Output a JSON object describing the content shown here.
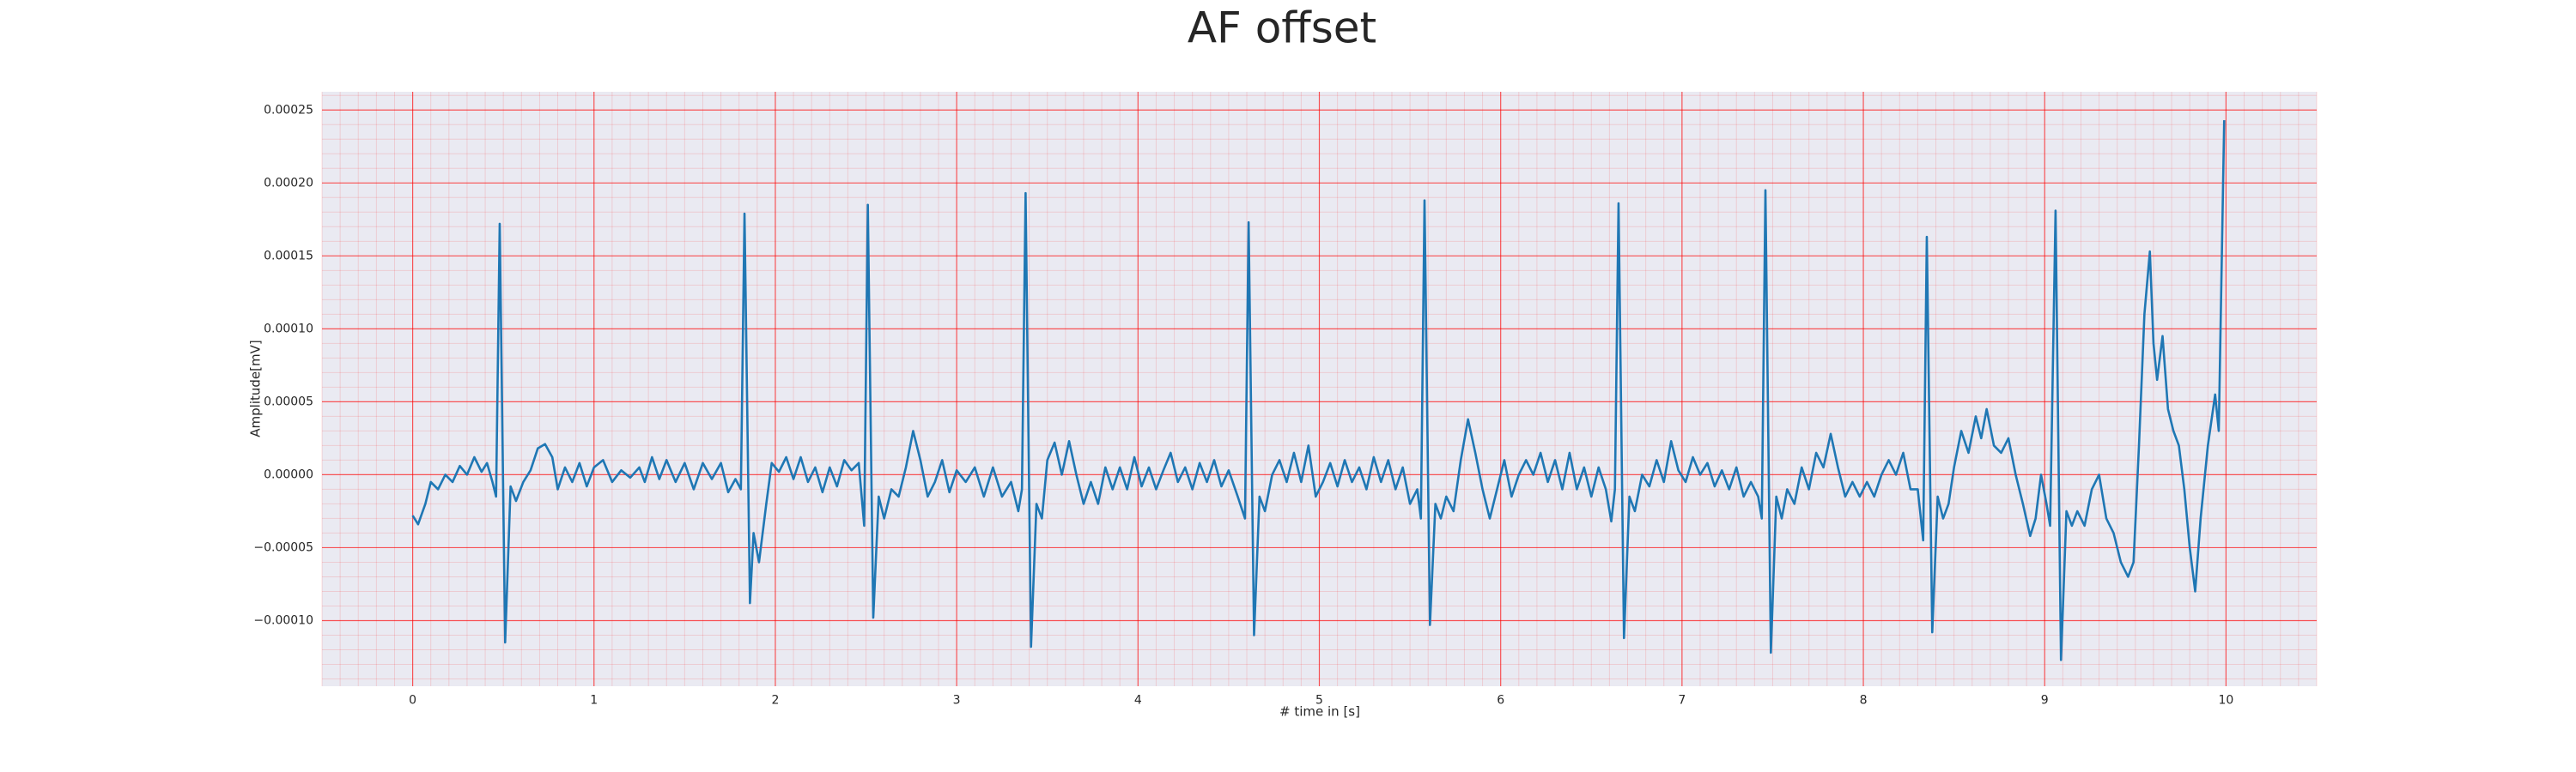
{
  "chart_data": {
    "type": "line",
    "title": "AF offset",
    "xlabel": "# time in [s]",
    "ylabel": "Amplitude[mV]",
    "xlim": [
      -0.5,
      10.5
    ],
    "xticks": [
      0,
      1,
      2,
      3,
      4,
      5,
      6,
      7,
      8,
      9,
      10
    ],
    "ylim": [
      -0.000145,
      0.0002625
    ],
    "yticks": [
      {
        "value": -0.0001,
        "label": "−0.00010"
      },
      {
        "value": -5e-05,
        "label": "−0.00005"
      },
      {
        "value": 0,
        "label": "0.00000"
      },
      {
        "value": 5e-05,
        "label": "0.00005"
      },
      {
        "value": 0.0001,
        "label": "0.00010"
      },
      {
        "value": 0.00015,
        "label": "0.00015"
      },
      {
        "value": 0.0002,
        "label": "0.00020"
      },
      {
        "value": 0.00025,
        "label": "0.00025"
      }
    ],
    "grid": true,
    "minor_grid": true,
    "grid_color": "#ff0000",
    "background": "#eaeaf2",
    "x": [
      0,
      0.03,
      0.07,
      0.1,
      0.14,
      0.18,
      0.22,
      0.26,
      0.3,
      0.34,
      0.38,
      0.41,
      0.44,
      0.46,
      0.48,
      0.51,
      0.54,
      0.57,
      0.61,
      0.65,
      0.69,
      0.73,
      0.77,
      0.8,
      0.84,
      0.88,
      0.92,
      0.96,
      1.0,
      1.05,
      1.1,
      1.15,
      1.2,
      1.25,
      1.28,
      1.32,
      1.36,
      1.4,
      1.45,
      1.5,
      1.55,
      1.6,
      1.65,
      1.7,
      1.74,
      1.78,
      1.81,
      1.83,
      1.86,
      1.88,
      1.91,
      1.95,
      1.98,
      2.02,
      2.06,
      2.1,
      2.14,
      2.18,
      2.22,
      2.26,
      2.3,
      2.34,
      2.38,
      2.42,
      2.46,
      2.49,
      2.51,
      2.54,
      2.57,
      2.6,
      2.64,
      2.68,
      2.72,
      2.76,
      2.8,
      2.84,
      2.88,
      2.92,
      2.96,
      3.0,
      3.05,
      3.1,
      3.15,
      3.2,
      3.25,
      3.3,
      3.34,
      3.36,
      3.38,
      3.41,
      3.44,
      3.47,
      3.5,
      3.54,
      3.58,
      3.62,
      3.66,
      3.7,
      3.74,
      3.78,
      3.82,
      3.86,
      3.9,
      3.94,
      3.98,
      4.02,
      4.06,
      4.1,
      4.14,
      4.18,
      4.22,
      4.26,
      4.3,
      4.34,
      4.38,
      4.42,
      4.46,
      4.5,
      4.55,
      4.59,
      4.61,
      4.64,
      4.67,
      4.7,
      4.74,
      4.78,
      4.82,
      4.86,
      4.9,
      4.94,
      4.98,
      5.02,
      5.06,
      5.1,
      5.14,
      5.18,
      5.22,
      5.26,
      5.3,
      5.34,
      5.38,
      5.42,
      5.46,
      5.5,
      5.54,
      5.56,
      5.58,
      5.61,
      5.64,
      5.67,
      5.7,
      5.74,
      5.78,
      5.82,
      5.86,
      5.9,
      5.94,
      5.98,
      6.02,
      6.06,
      6.1,
      6.14,
      6.18,
      6.22,
      6.26,
      6.3,
      6.34,
      6.38,
      6.42,
      6.46,
      6.5,
      6.54,
      6.58,
      6.61,
      6.63,
      6.65,
      6.68,
      6.71,
      6.74,
      6.78,
      6.82,
      6.86,
      6.9,
      6.94,
      6.98,
      7.02,
      7.06,
      7.1,
      7.14,
      7.18,
      7.22,
      7.26,
      7.3,
      7.34,
      7.38,
      7.42,
      7.44,
      7.46,
      7.49,
      7.52,
      7.55,
      7.58,
      7.62,
      7.66,
      7.7,
      7.74,
      7.78,
      7.82,
      7.86,
      7.9,
      7.94,
      7.98,
      8.02,
      8.06,
      8.1,
      8.14,
      8.18,
      8.22,
      8.26,
      8.3,
      8.33,
      8.35,
      8.38,
      8.41,
      8.44,
      8.47,
      8.5,
      8.54,
      8.58,
      8.62,
      8.65,
      8.68,
      8.72,
      8.76,
      8.8,
      8.84,
      8.88,
      8.92,
      8.95,
      8.98,
      9.01,
      9.03,
      9.06,
      9.09,
      9.12,
      9.15,
      9.18,
      9.22,
      9.26,
      9.3,
      9.34,
      9.38,
      9.42,
      9.46,
      9.49,
      9.52,
      9.55,
      9.58,
      9.6,
      9.62,
      9.65,
      9.68,
      9.71,
      9.74,
      9.77,
      9.8,
      9.83,
      9.86,
      9.9,
      9.94,
      9.96,
      9.99
    ],
    "series": [
      {
        "color": "#1f77b4",
        "values": [
          -2.8e-05,
          -3.4e-05,
          -2e-05,
          -5e-06,
          -1e-05,
          0,
          -5e-06,
          6e-06,
          0,
          1.2e-05,
          2e-06,
          8e-06,
          -5e-06,
          -1.5e-05,
          0.000172,
          -0.000115,
          -8e-06,
          -1.8e-05,
          -5e-06,
          3e-06,
          1.8e-05,
          2.1e-05,
          1.2e-05,
          -1e-05,
          5e-06,
          -5e-06,
          8e-06,
          -8e-06,
          5e-06,
          1e-05,
          -5e-06,
          3e-06,
          -2e-06,
          5e-06,
          -5e-06,
          1.2e-05,
          -3e-06,
          1e-05,
          -5e-06,
          8e-06,
          -1e-05,
          8e-06,
          -3e-06,
          8e-06,
          -1.2e-05,
          -3e-06,
          -1e-05,
          0.000179,
          -8.8e-05,
          -4e-05,
          -6e-05,
          -2e-05,
          8e-06,
          2e-06,
          1.2e-05,
          -3e-06,
          1.2e-05,
          -5e-06,
          5e-06,
          -1.2e-05,
          5e-06,
          -8e-06,
          1e-05,
          3e-06,
          8e-06,
          -3.5e-05,
          0.000185,
          -9.8e-05,
          -1.5e-05,
          -3e-05,
          -1e-05,
          -1.5e-05,
          5e-06,
          3e-05,
          1e-05,
          -1.5e-05,
          -5e-06,
          1e-05,
          -1.2e-05,
          3e-06,
          -5e-06,
          5e-06,
          -1.5e-05,
          5e-06,
          -1.5e-05,
          -5e-06,
          -2.5e-05,
          -1e-05,
          0.000193,
          -0.000118,
          -2e-05,
          -3e-05,
          1e-05,
          2.2e-05,
          0,
          2.3e-05,
          0,
          -2e-05,
          -5e-06,
          -2e-05,
          5e-06,
          -1e-05,
          5e-06,
          -1e-05,
          1.2e-05,
          -8e-06,
          5e-06,
          -1e-05,
          3e-06,
          1.5e-05,
          -5e-06,
          5e-06,
          -1e-05,
          8e-06,
          -5e-06,
          1e-05,
          -8e-06,
          3e-06,
          -1.5e-05,
          -3e-05,
          0.000173,
          -0.00011,
          -1.5e-05,
          -2.5e-05,
          0,
          1e-05,
          -5e-06,
          1.5e-05,
          -5e-06,
          2e-05,
          -1.5e-05,
          -5e-06,
          8e-06,
          -8e-06,
          1e-05,
          -5e-06,
          5e-06,
          -1e-05,
          1.2e-05,
          -5e-06,
          1e-05,
          -1e-05,
          5e-06,
          -2e-05,
          -1e-05,
          -3e-05,
          0.000188,
          -0.000103,
          -2e-05,
          -3e-05,
          -1.5e-05,
          -2.5e-05,
          1e-05,
          3.8e-05,
          1.5e-05,
          -1e-05,
          -3e-05,
          -1e-05,
          1e-05,
          -1.5e-05,
          0,
          1e-05,
          0,
          1.5e-05,
          -5e-06,
          1e-05,
          -1e-05,
          1.5e-05,
          -1e-05,
          5e-06,
          -1.5e-05,
          5e-06,
          -1e-05,
          -3.2e-05,
          -1e-05,
          0.000186,
          -0.000112,
          -1.5e-05,
          -2.5e-05,
          0,
          -8e-06,
          1e-05,
          -5e-06,
          2.3e-05,
          3e-06,
          -5e-06,
          1.2e-05,
          0,
          8e-06,
          -8e-06,
          3e-06,
          -1e-05,
          5e-06,
          -1.5e-05,
          -5e-06,
          -1.5e-05,
          -3e-05,
          0.000195,
          -0.000122,
          -1.5e-05,
          -3e-05,
          -1e-05,
          -2e-05,
          5e-06,
          -1e-05,
          1.5e-05,
          5e-06,
          2.8e-05,
          5e-06,
          -1.5e-05,
          -5e-06,
          -1.5e-05,
          -5e-06,
          -1.5e-05,
          0,
          1e-05,
          0,
          1.5e-05,
          -1e-05,
          -1e-05,
          -4.5e-05,
          0.000163,
          -0.000108,
          -1.5e-05,
          -3e-05,
          -2e-05,
          5e-06,
          3e-05,
          1.5e-05,
          4e-05,
          2.5e-05,
          4.5e-05,
          2e-05,
          1.5e-05,
          2.5e-05,
          0,
          -2e-05,
          -4.2e-05,
          -3e-05,
          0,
          -2e-05,
          -3.5e-05,
          0.000181,
          -0.000127,
          -2.5e-05,
          -3.5e-05,
          -2.5e-05,
          -3.5e-05,
          -1e-05,
          0,
          -3e-05,
          -4e-05,
          -6e-05,
          -7e-05,
          -6e-05,
          2e-05,
          0.00011,
          0.000153,
          9e-05,
          6.5e-05,
          9.5e-05,
          4.5e-05,
          3e-05,
          2e-05,
          -1e-05,
          -5e-05,
          -8e-05,
          -3e-05,
          2e-05,
          5.5e-05,
          3e-05,
          0.000243
        ]
      }
    ]
  }
}
